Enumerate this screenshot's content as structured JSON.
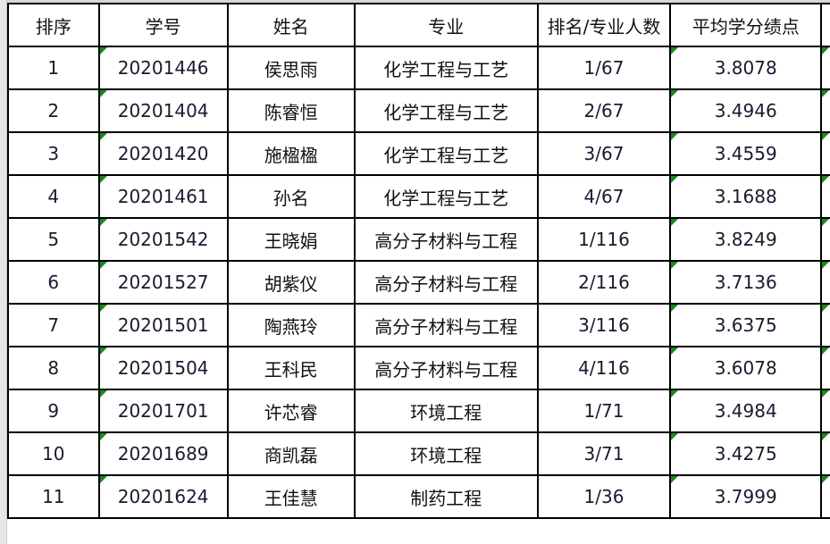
{
  "headers": [
    "排序",
    "学号",
    "姓名",
    "专业",
    "排名/专业人数",
    "平均学分绩点"
  ],
  "rows": [
    {
      "rank": "1",
      "id": "20201446",
      "name": "侯思雨",
      "major": "化学工程与工艺",
      "pos": "1/67",
      "gpa": "3.8078"
    },
    {
      "rank": "2",
      "id": "20201404",
      "name": "陈睿恒",
      "major": "化学工程与工艺",
      "pos": "2/67",
      "gpa": "3.4946"
    },
    {
      "rank": "3",
      "id": "20201420",
      "name": "施楹楹",
      "major": "化学工程与工艺",
      "pos": "3/67",
      "gpa": "3.4559"
    },
    {
      "rank": "4",
      "id": "20201461",
      "name": "孙名",
      "major": "化学工程与工艺",
      "pos": "4/67",
      "gpa": "3.1688"
    },
    {
      "rank": "5",
      "id": "20201542",
      "name": "王晓娟",
      "major": "高分子材料与工程",
      "pos": "1/116",
      "gpa": "3.8249"
    },
    {
      "rank": "6",
      "id": "20201527",
      "name": "胡紫仪",
      "major": "高分子材料与工程",
      "pos": "2/116",
      "gpa": "3.7136"
    },
    {
      "rank": "7",
      "id": "20201501",
      "name": "陶燕玲",
      "major": "高分子材料与工程",
      "pos": "3/116",
      "gpa": "3.6375"
    },
    {
      "rank": "8",
      "id": "20201504",
      "name": "王科民",
      "major": "高分子材料与工程",
      "pos": "4/116",
      "gpa": "3.6078"
    },
    {
      "rank": "9",
      "id": "20201701",
      "name": "许芯睿",
      "major": "环境工程",
      "pos": "1/71",
      "gpa": "3.4984"
    },
    {
      "rank": "10",
      "id": "20201689",
      "name": "商凯磊",
      "major": "环境工程",
      "pos": "3/71",
      "gpa": "3.4275"
    },
    {
      "rank": "11",
      "id": "20201624",
      "name": "王佳慧",
      "major": "制药工程",
      "pos": "1/36",
      "gpa": "3.7999"
    }
  ],
  "colors": {
    "flag": "#1a8a1a",
    "grid": "#000000",
    "gutter": "#e6e6e6"
  }
}
